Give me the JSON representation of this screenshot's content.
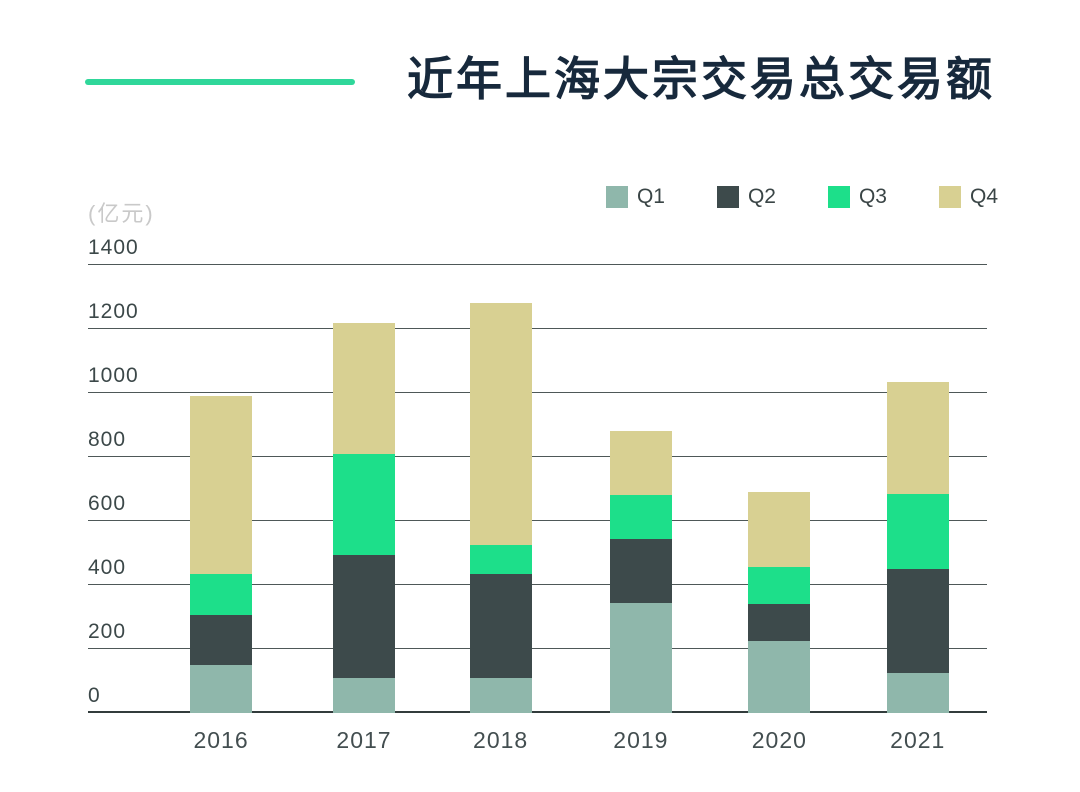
{
  "header": {
    "title": "近年上海大宗交易总交易额"
  },
  "unit_label": "(亿元)",
  "legend": [
    {
      "label": "Q1",
      "color": "#8fb7ab"
    },
    {
      "label": "Q2",
      "color": "#3d4a4b"
    },
    {
      "label": "Q3",
      "color": "#1ddf8a"
    },
    {
      "label": "Q4",
      "color": "#d8d092"
    }
  ],
  "chart_data": {
    "type": "bar",
    "stacked": true,
    "title": "近年上海大宗交易总交易额",
    "ylabel": "(亿元)",
    "categories": [
      "2016",
      "2017",
      "2018",
      "2019",
      "2020",
      "2021"
    ],
    "series": [
      {
        "name": "Q1",
        "color": "#8fb7ab",
        "values": [
          150,
          110,
          110,
          345,
          225,
          125
        ]
      },
      {
        "name": "Q2",
        "color": "#3d4a4b",
        "values": [
          155,
          385,
          325,
          200,
          115,
          325
        ]
      },
      {
        "name": "Q3",
        "color": "#1ddf8a",
        "values": [
          130,
          315,
          90,
          135,
          115,
          235
        ]
      },
      {
        "name": "Q4",
        "color": "#d8d092",
        "values": [
          555,
          410,
          755,
          200,
          235,
          350
        ]
      }
    ],
    "totals": [
      990,
      1220,
      1280,
      880,
      690,
      1035
    ],
    "ylim": [
      0,
      1400
    ],
    "yticks": [
      0,
      200,
      400,
      600,
      800,
      1000,
      1200,
      1400
    ],
    "grid": true,
    "legend_position": "top-right"
  },
  "colors": {
    "accent_line": "#2fd79a",
    "title_text": "#17293c",
    "gridline": "#4e5858",
    "axis_line": "#323c3c",
    "tick_text": "#3c4849",
    "unit_text": "#c9c9c9"
  }
}
